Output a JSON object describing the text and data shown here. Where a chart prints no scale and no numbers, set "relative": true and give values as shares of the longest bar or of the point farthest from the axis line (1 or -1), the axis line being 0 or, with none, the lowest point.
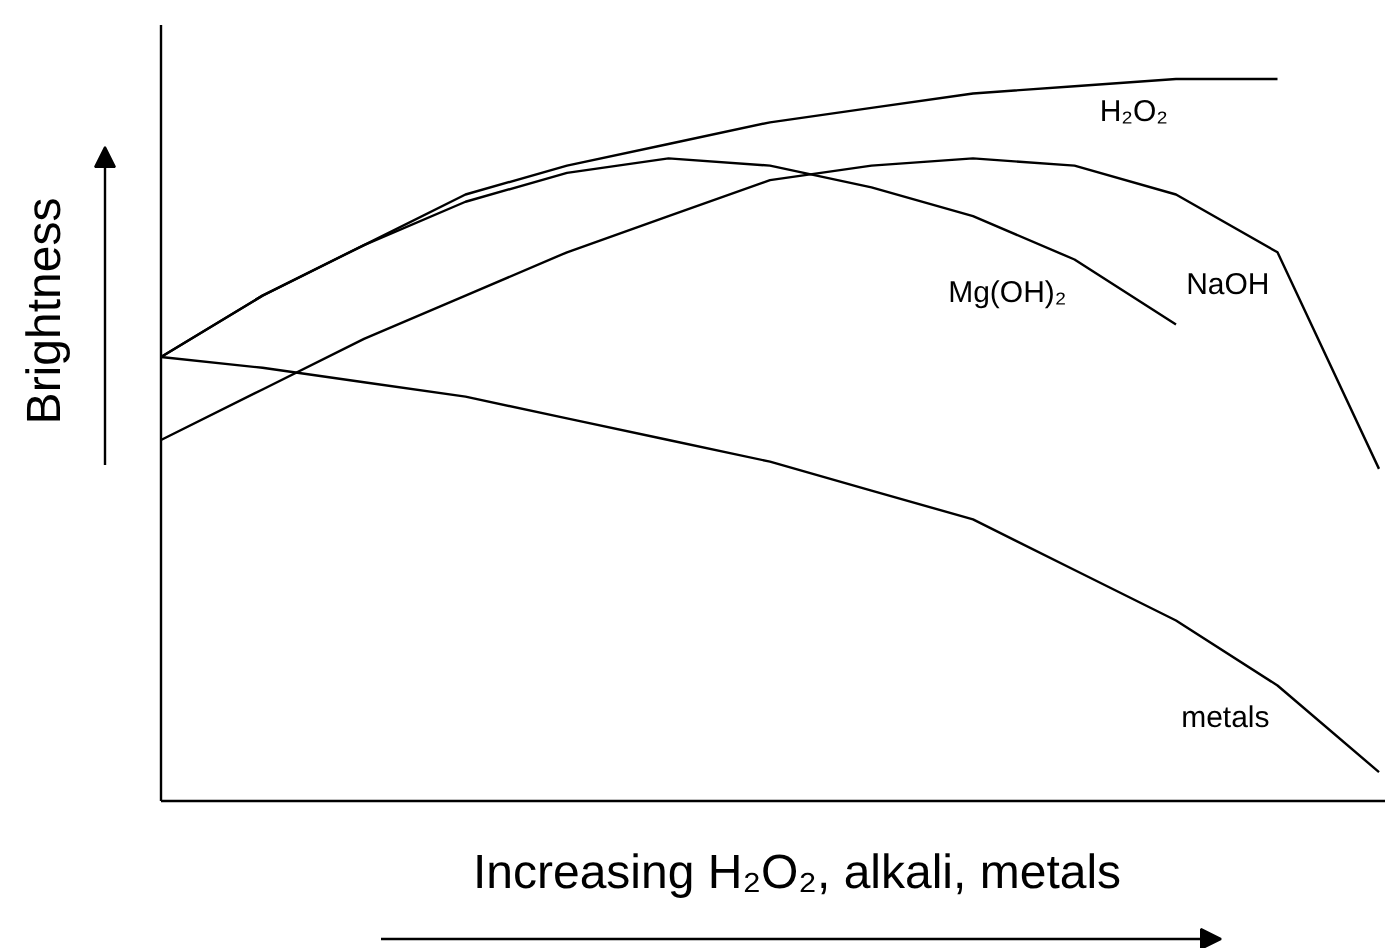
{
  "chart_data": {
    "type": "line",
    "relative": true,
    "xlabel": "Increasing H₂O₂, alkali, metals",
    "ylabel": "Brightness",
    "categories": [
      null,
      null,
      null,
      null,
      null,
      null,
      null,
      null,
      null,
      null,
      null,
      null,
      null
    ],
    "legend": false,
    "marker": "none",
    "line_style": "solid",
    "series": [
      {
        "name": "H₂O₂",
        "color": "#000000",
        "values": [
          0.615,
          0.7,
          0.77,
          0.84,
          0.88,
          0.91,
          0.94,
          0.96,
          0.98,
          0.99,
          1.0,
          1.0,
          null
        ]
      },
      {
        "name": "NaOH",
        "color": "#000000",
        "values": [
          0.5,
          0.57,
          0.64,
          0.7,
          0.76,
          0.81,
          0.86,
          0.88,
          0.89,
          0.88,
          0.84,
          0.76,
          0.46
        ]
      },
      {
        "name": "Mg(OH)₂",
        "color": "#000000",
        "values": [
          0.615,
          0.7,
          0.77,
          0.83,
          0.87,
          0.89,
          0.88,
          0.85,
          0.81,
          0.75,
          0.66,
          null,
          null
        ]
      },
      {
        "name": "metals",
        "color": "#000000",
        "values": [
          0.615,
          0.6,
          0.58,
          0.56,
          0.53,
          0.5,
          0.47,
          0.43,
          0.39,
          0.32,
          0.25,
          0.16,
          0.04
        ]
      }
    ]
  }
}
